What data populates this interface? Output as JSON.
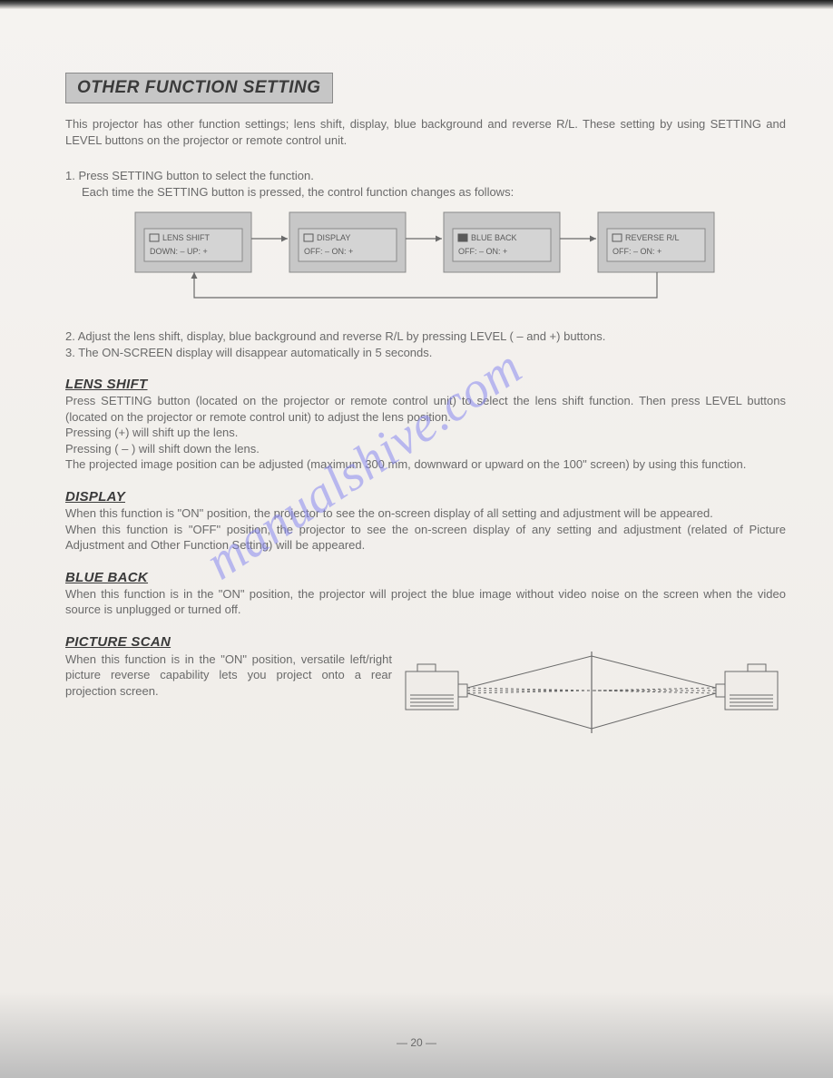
{
  "title": "OTHER FUNCTION SETTING",
  "intro": "This projector has other function settings; lens shift, display, blue background and reverse R/L. These setting by using SETTING and LEVEL buttons on the projector or remote control unit.",
  "step1_line1": "1. Press SETTING button to select the function.",
  "step1_line2": "Each time the SETTING button is pressed, the control function changes as follows:",
  "boxes": [
    {
      "label": "LENS SHIFT",
      "sub": "DOWN: –   UP: +",
      "icon": "lens"
    },
    {
      "label": "DISPLAY",
      "sub": "OFF: –    ON: +",
      "icon": "rect"
    },
    {
      "label": "BLUE BACK",
      "sub": "OFF: –    ON: +",
      "icon": "fill"
    },
    {
      "label": "REVERSE R/L",
      "sub": "OFF: –    ON: +",
      "icon": "rl"
    }
  ],
  "diagram_colors": {
    "box_fill": "#c7c7c7",
    "box_fill_inner": "#d4d4d4",
    "box_stroke": "#8a8a8a",
    "arrow": "#6a6a6a",
    "text": "#5a5a5a"
  },
  "step2": "2. Adjust the lens shift, display, blue background and reverse R/L by pressing LEVEL ( – and +) buttons.",
  "step3": "3. The ON-SCREEN display will disappear automatically in 5 seconds.",
  "sections": {
    "lens_shift": {
      "h": "LENS SHIFT",
      "body": "Press SETTING button (located on the projector or remote control unit) to select the lens shift function. Then press LEVEL buttons (located on the projector or remote control unit) to adjust the lens position.\nPressing (+) will shift up the lens.\nPressing ( – ) will shift down the lens.\nThe projected image position can be adjusted (maximum 300 mm, downward or upward on the 100\" screen) by using this function."
    },
    "display": {
      "h": "DISPLAY",
      "body": "When this function is \"ON\" position, the projector to see the on-screen display of all setting and adjustment will be appeared.\nWhen this function is \"OFF\" position, the projector to see the on-screen display of any setting and adjustment (related of Picture Adjustment and Other Function Setting) will be appeared."
    },
    "blue_back": {
      "h": "BLUE BACK",
      "body": "When this function is in the \"ON\" position, the projector will project the blue image without video noise on the screen when the video source is unplugged or turned off."
    },
    "picture_scan": {
      "h": "PICTURE SCAN",
      "body": "When this function is in the \"ON\" position, versatile left/right picture reverse capability lets you project onto a rear projection screen."
    }
  },
  "projector_diagram": {
    "stroke": "#6a6a6a",
    "dash": "3,3",
    "fill": "#efece8"
  },
  "page_num": "— 20 —",
  "watermark": "manualshive.com"
}
